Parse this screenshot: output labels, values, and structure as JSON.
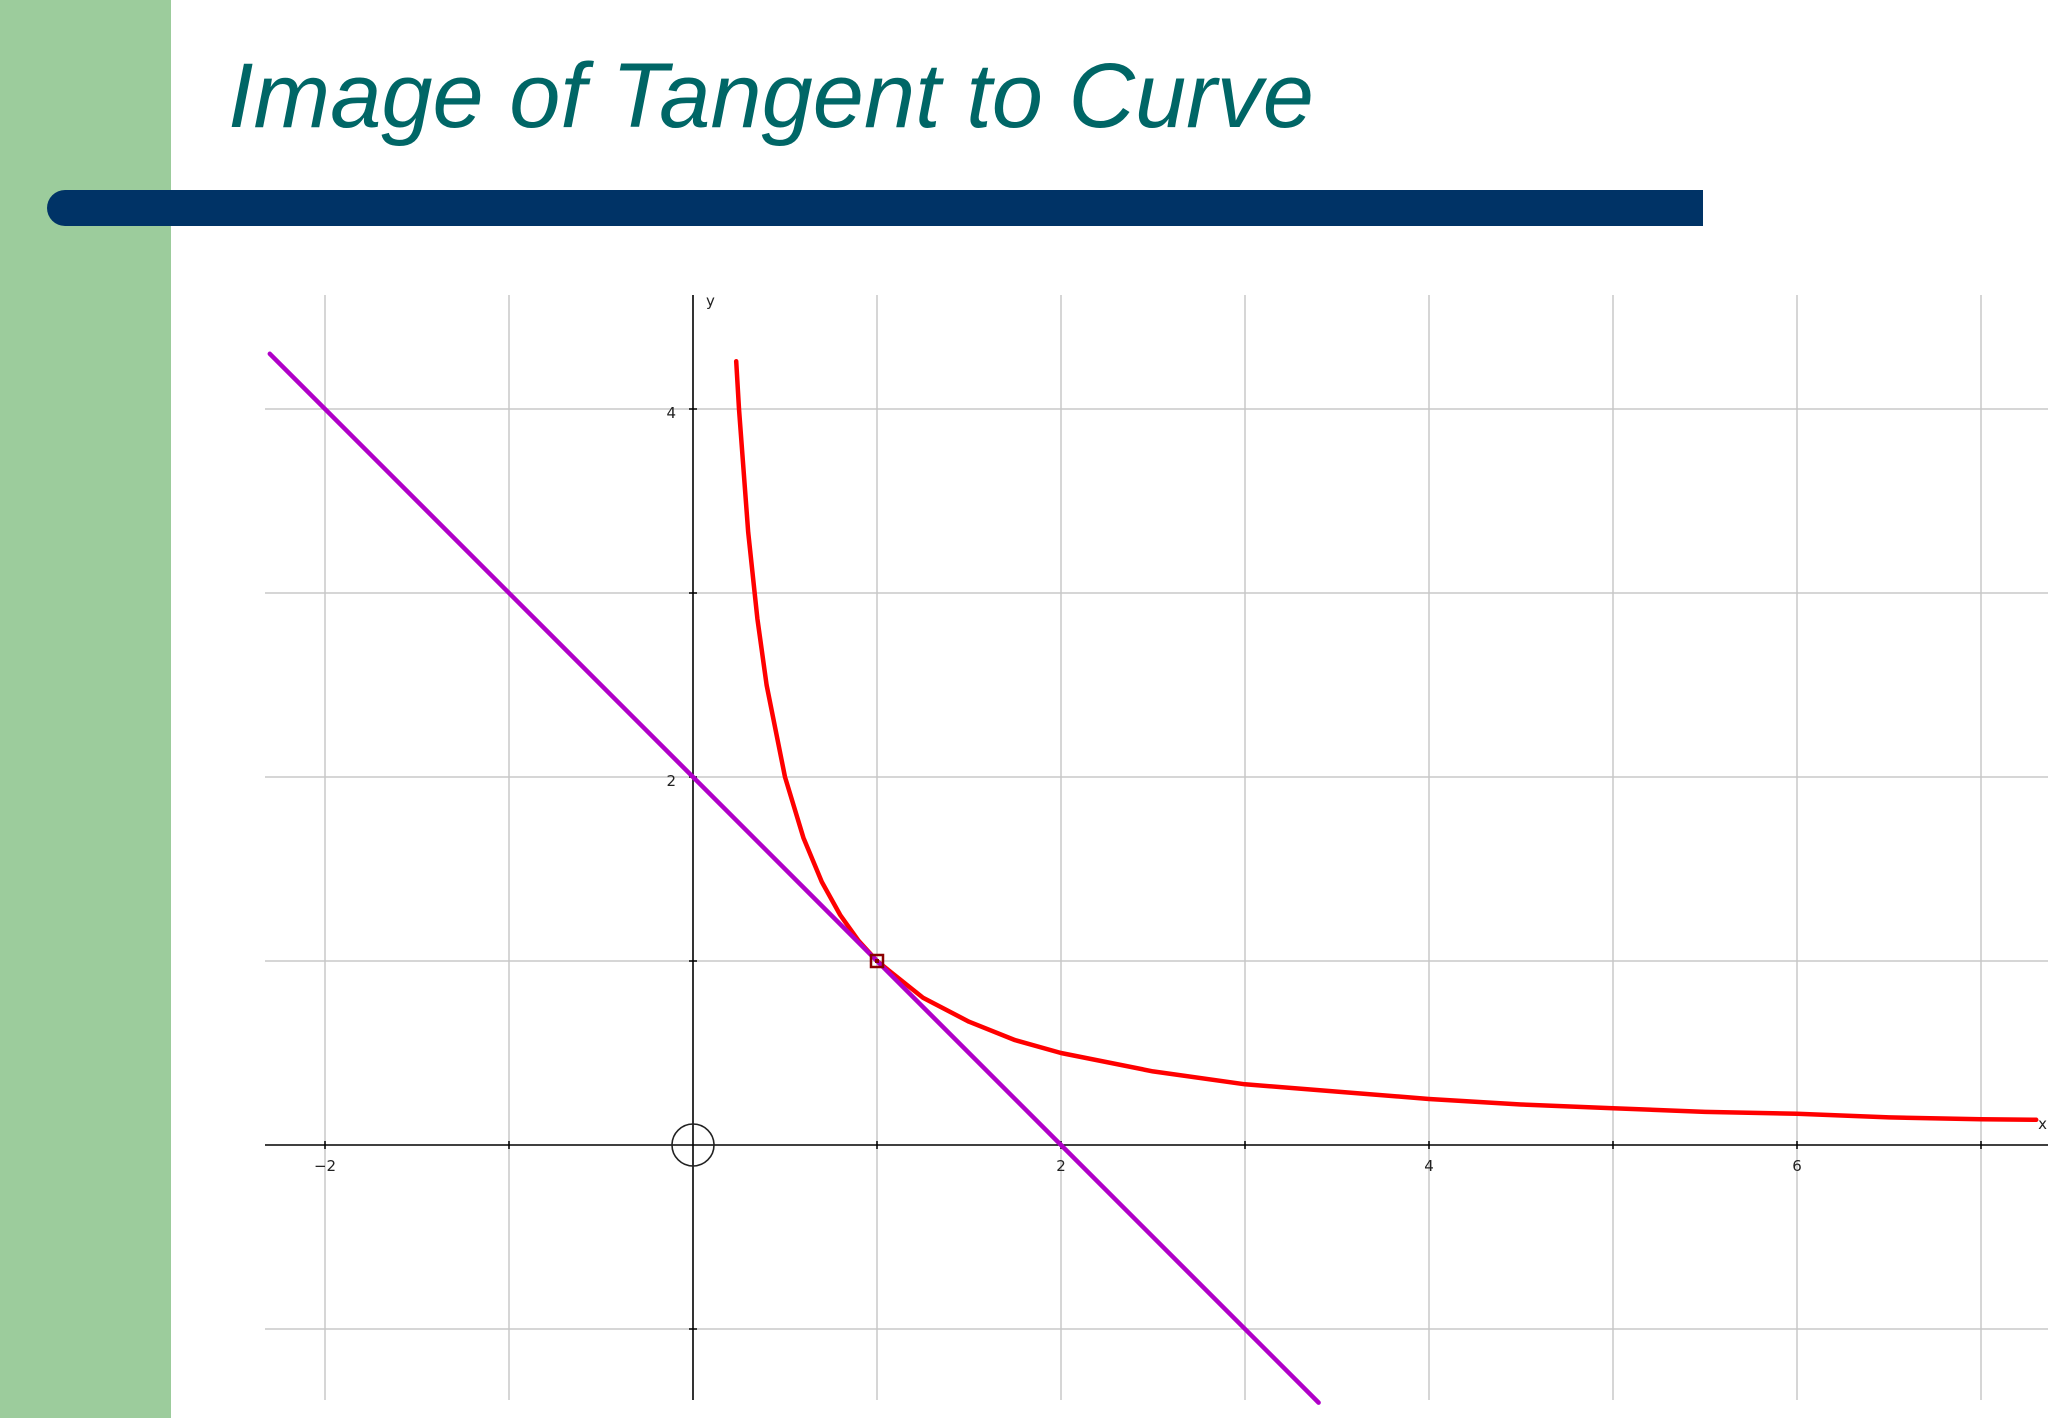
{
  "slide": {
    "title": "Image of Tangent to Curve"
  },
  "colors": {
    "left_band": "#9ccc9c",
    "title_bar": "#003366",
    "title_text": "#006666",
    "curve": "#ff0000",
    "tangent": "#b000c8",
    "point_marker": "#8b0000",
    "grid": "#c8c8c8",
    "axis": "#000000"
  },
  "chart_data": {
    "type": "line",
    "title": "",
    "xlabel": "x",
    "ylabel": "y",
    "xlim": [
      -2.3,
      7.3
    ],
    "ylim": [
      -1.4,
      4.6
    ],
    "grid": true,
    "x_ticks": [
      -2,
      2,
      4,
      6
    ],
    "x_tick_labels": [
      "−2",
      "2",
      "4",
      "6"
    ],
    "y_ticks": [
      2,
      4
    ],
    "y_tick_labels": [
      "2",
      "4"
    ],
    "series": [
      {
        "function": "y = 1/x",
        "x": [
          0.235,
          0.25,
          0.3,
          0.35,
          0.4,
          0.5,
          0.6,
          0.7,
          0.8,
          0.9,
          1,
          1.25,
          1.5,
          1.75,
          2,
          2.5,
          3,
          3.5,
          4,
          4.5,
          5,
          5.5,
          6,
          6.5,
          7,
          7.3
        ],
        "y": [
          4.26,
          4.0,
          3.33,
          2.86,
          2.5,
          2.0,
          1.67,
          1.43,
          1.25,
          1.11,
          1.0,
          0.8,
          0.67,
          0.57,
          0.5,
          0.4,
          0.33,
          0.29,
          0.25,
          0.22,
          0.2,
          0.18,
          0.17,
          0.15,
          0.14,
          0.137
        ]
      },
      {
        "function": "y = 2 − x",
        "x": [
          -2.3,
          3.4
        ],
        "y": [
          4.3,
          -1.4
        ]
      }
    ],
    "points": [
      {
        "x": 1,
        "y": 1
      }
    ],
    "origin_marker": {
      "x": 0,
      "y": 0
    }
  }
}
